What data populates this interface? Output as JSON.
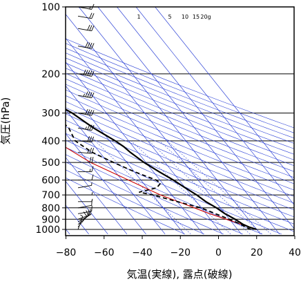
{
  "chart_data": {
    "type": "line",
    "title": "",
    "xlabel": "気温(実線), 露点(破線)",
    "ylabel": "気圧(hPa)",
    "x_scale": "linear",
    "y_scale": "log",
    "xlim": [
      -80,
      40
    ],
    "ylim": [
      100,
      1050
    ],
    "y_inverted": true,
    "grid": true,
    "x_ticks": [
      "−80",
      "−60",
      "−40",
      "−20",
      "0",
      "20",
      "40"
    ],
    "y_ticks": [
      "100",
      "200",
      "300",
      "400",
      "500",
      "600",
      "700",
      "800",
      "900",
      "1000"
    ],
    "mixing_ratio_labels": [
      "1",
      "5",
      "10",
      "15",
      "20g"
    ],
    "series": [
      {
        "style": "solid",
        "color": "#000000",
        "p": [
          1000,
          975,
          950,
          925,
          900,
          850,
          800,
          750,
          700,
          650,
          600,
          550,
          500,
          450,
          425,
          400,
          350,
          300,
          250,
          200,
          175,
          150,
          125,
          110,
          100
        ],
        "t": [
          20,
          17,
          15,
          14,
          13,
          10,
          8,
          5,
          3,
          0,
          -3,
          -7,
          -11,
          -14,
          -15,
          -17,
          -23,
          -28,
          -37,
          -47,
          -50,
          -52,
          -53,
          -55,
          -58
        ]
      },
      {
        "style": "dashed",
        "color": "#000000",
        "p": [
          1000,
          975,
          950,
          925,
          900,
          850,
          800,
          750,
          700,
          680,
          650,
          620,
          600,
          550,
          500,
          450,
          400,
          350,
          320,
          310,
          310
        ],
        "t": [
          17,
          15,
          14,
          12,
          10,
          5,
          0,
          -10,
          -20,
          -26,
          -15,
          -11,
          -12,
          -20,
          -27,
          -34,
          -38,
          -36,
          -37,
          -38,
          -80
        ]
      }
    ],
    "reference_line": {
      "color": "#cc0000",
      "p": [
        1000,
        850,
        700,
        500,
        300,
        200,
        150
      ],
      "t": [
        20,
        2,
        -16,
        -39,
        -61,
        -73,
        -79
      ]
    },
    "wind_barbs": {
      "p": [
        1000,
        975,
        950,
        925,
        900,
        850,
        800,
        750,
        700,
        650,
        600,
        550,
        500,
        450,
        400,
        350,
        300,
        250,
        200,
        150,
        125,
        110,
        100
      ],
      "speed_kt": [
        5,
        10,
        10,
        15,
        15,
        10,
        10,
        5,
        5,
        5,
        10,
        15,
        20,
        25,
        30,
        35,
        40,
        45,
        50,
        40,
        30,
        20,
        15
      ],
      "dir_deg": [
        200,
        220,
        230,
        240,
        250,
        260,
        260,
        270,
        270,
        260,
        270,
        270,
        270,
        275,
        275,
        280,
        280,
        280,
        280,
        280,
        280,
        280,
        280
      ]
    }
  }
}
